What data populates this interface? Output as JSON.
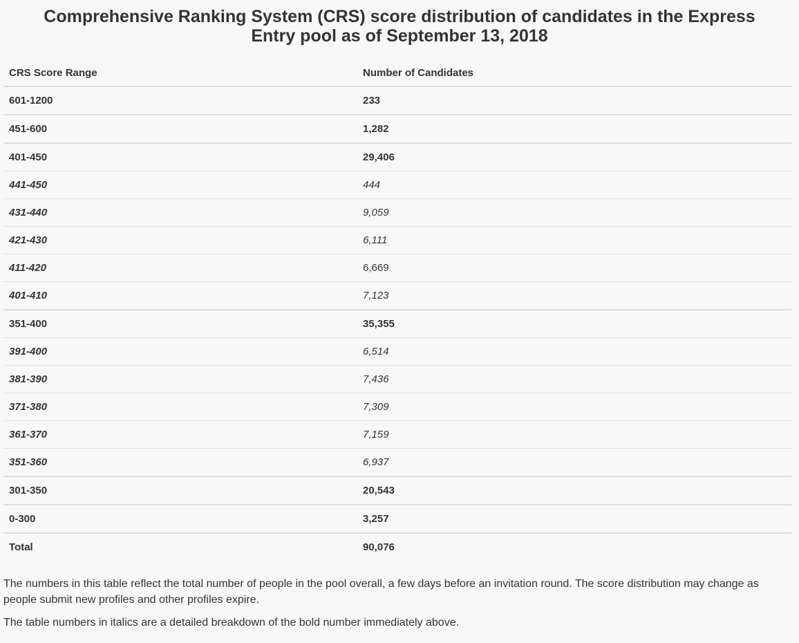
{
  "title": "Comprehensive Ranking System (CRS) score distribution of candidates in the Express Entry pool as of September 13, 2018",
  "table": {
    "header": [
      "CRS Score Range",
      "Number of Candidates"
    ],
    "rows": [
      [
        "601-1200",
        "233"
      ],
      [
        "451-600",
        "1,282"
      ],
      [
        "401-450",
        "29,406"
      ],
      [
        "441-450",
        "444"
      ],
      [
        "431-440",
        "9,059"
      ],
      [
        "421-430",
        "6,111"
      ],
      [
        "411-420",
        "6,669"
      ],
      [
        "401-410",
        "7,123"
      ],
      [
        "351-400",
        "35,355"
      ],
      [
        "391-400",
        "6,514"
      ],
      [
        "381-390",
        "7,436"
      ],
      [
        "371-380",
        "7,309"
      ],
      [
        "361-370",
        "7,159"
      ],
      [
        "351-360",
        "6,937"
      ],
      [
        "301-350",
        "20,543"
      ],
      [
        "0-300",
        "3,257"
      ],
      [
        "Total",
        "90,076"
      ]
    ],
    "cell_styles": [
      [
        "bold",
        "bold"
      ],
      [
        "bold",
        "bold"
      ],
      [
        "bold",
        "bold"
      ],
      [
        "bold-italic",
        "italic"
      ],
      [
        "bold-italic",
        "italic"
      ],
      [
        "bold-italic",
        "italic"
      ],
      [
        "bold-italic",
        "normal"
      ],
      [
        "bold-italic",
        "italic"
      ],
      [
        "bold",
        "bold"
      ],
      [
        "bold-italic",
        "italic"
      ],
      [
        "bold-italic",
        "italic"
      ],
      [
        "bold-italic",
        "italic"
      ],
      [
        "bold-italic",
        "italic"
      ],
      [
        "bold-italic",
        "italic"
      ],
      [
        "bold",
        "bold"
      ],
      [
        "bold",
        "bold"
      ],
      [
        "bold",
        "bold"
      ]
    ]
  },
  "notes": [
    "The numbers in this table reflect the total number of people in the pool overall, a few days before an invitation round. The score distribution may change as people submit new profiles and other profiles expire.",
    "The table numbers in italics are a detailed breakdown of the bold number immediately above."
  ]
}
